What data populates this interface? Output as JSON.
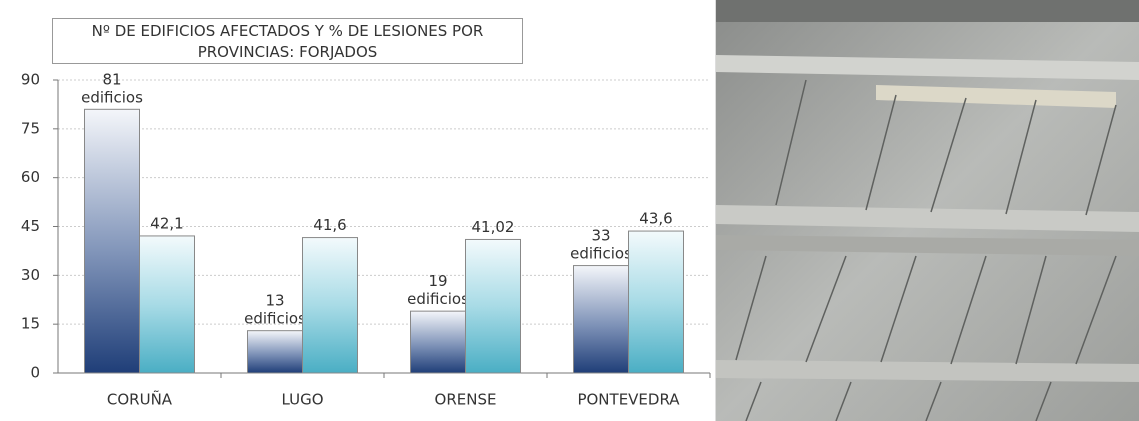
{
  "chart_data": {
    "type": "bar",
    "title": "Nº DE  EDIFICIOS AFECTADOS Y % DE LESIONES POR PROVINCIAS:   FORJADOS",
    "categories": [
      "CORUÑA",
      "LUGO",
      "ORENSE",
      "PONTEVEDRA"
    ],
    "series": [
      {
        "color": "#1f3e78",
        "values": [
          81,
          13,
          19,
          33
        ],
        "value_labels": [
          "81 edificios",
          "13 edificios",
          "19 edificios",
          "33 edificios"
        ]
      },
      {
        "color": "#4aaec4",
        "values": [
          42.1,
          41.6,
          41.02,
          43.6
        ],
        "value_labels": [
          "42,1",
          "41,6",
          "41,02",
          "43,6"
        ]
      }
    ],
    "ylim": [
      0,
      90
    ],
    "yticks": [
      0,
      15,
      30,
      45,
      60,
      75,
      90
    ],
    "grid": true
  }
}
